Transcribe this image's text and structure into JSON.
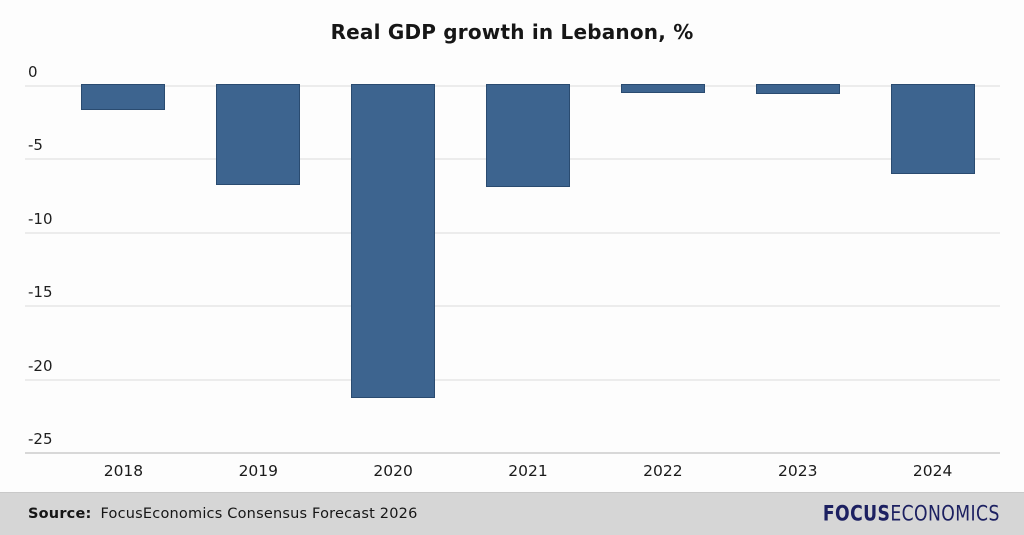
{
  "title": "Real GDP growth in Lebanon, %",
  "chart_data": {
    "type": "bar",
    "categories": [
      "2018",
      "2019",
      "2020",
      "2021",
      "2022",
      "2023",
      "2024"
    ],
    "values": [
      -1.8,
      -6.9,
      -21.4,
      -7.0,
      -0.6,
      -0.7,
      -6.1
    ],
    "title": "Real GDP growth in Lebanon, %",
    "xlabel": "",
    "ylabel": "",
    "ylim": [
      -25,
      0
    ],
    "yticks": [
      0,
      -5,
      -10,
      -15,
      -20,
      -25
    ],
    "grid": true,
    "legend": "none",
    "bar_color": "#3d648f",
    "bar_border_color": "#2a4b70",
    "gridline_color": "#ececec"
  },
  "footer": {
    "source_label": "Source:",
    "source_text": "FocusEconomics Consensus Forecast 2026",
    "logo_bold": "FOCUS",
    "logo_light": "ECONOMICS",
    "logo_color": "#1c2061",
    "background": "#d6d6d6"
  }
}
